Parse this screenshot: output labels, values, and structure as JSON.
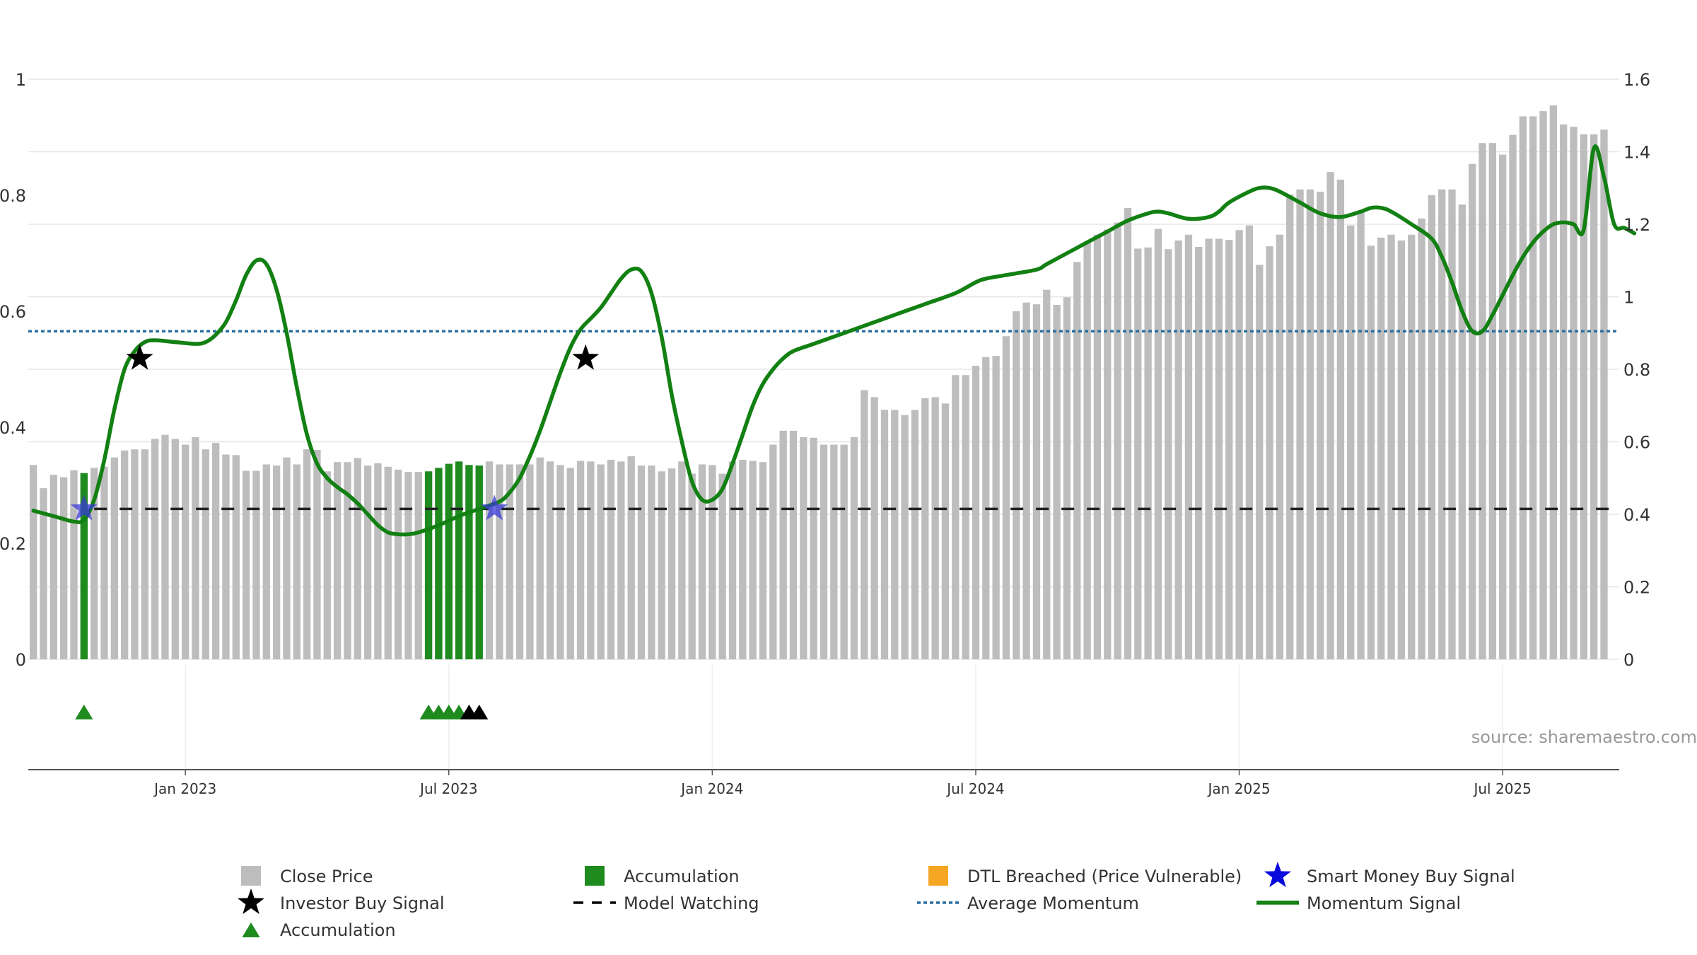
{
  "chart_data": {
    "type": "bar",
    "source": "source: sharemaestro.com",
    "left_axis": {
      "ylim": [
        0,
        1
      ],
      "ticks": [
        0,
        0.2,
        0.4,
        0.6,
        0.8,
        1
      ],
      "tick_labels": [
        "0",
        "0.2",
        "0.4",
        "0.6",
        "0.8",
        "1"
      ]
    },
    "right_axis": {
      "ylim": [
        0,
        1.6
      ],
      "ticks": [
        0,
        0.2,
        0.4,
        0.6,
        0.8,
        1,
        1.2,
        1.4,
        1.6
      ],
      "tick_labels": [
        "0",
        "0.2",
        "0.4",
        "0.6",
        "0.8",
        "1",
        "1.2",
        "1.4",
        "1.6"
      ]
    },
    "x_axis": {
      "weeks_total": 157,
      "ticks": [
        {
          "week": 15,
          "label": "Jan 2023"
        },
        {
          "week": 41,
          "label": "Jul 2023"
        },
        {
          "week": 67,
          "label": "Jan 2024"
        },
        {
          "week": 93,
          "label": "Jul 2024"
        },
        {
          "week": 119,
          "label": "Jan 2025"
        },
        {
          "week": 145,
          "label": "Jul 2025"
        }
      ]
    },
    "series": [
      {
        "name": "Close Price",
        "axis": "left",
        "type": "bar",
        "color": "#bdbdbd",
        "values": [
          0.335,
          0.295,
          0.318,
          0.314,
          0.326,
          0.321,
          0.33,
          0.332,
          0.348,
          0.36,
          0.362,
          0.362,
          0.38,
          0.387,
          0.38,
          0.37,
          0.383,
          0.362,
          0.373,
          0.353,
          0.352,
          0.325,
          0.325,
          0.336,
          0.334,
          0.348,
          0.336,
          0.362,
          0.361,
          0.324,
          0.34,
          0.34,
          0.347,
          0.334,
          0.338,
          0.332,
          0.327,
          0.323,
          0.323,
          0.324,
          0.33,
          0.337,
          0.341,
          0.335,
          0.334,
          0.341,
          0.336,
          0.336,
          0.336,
          0.336,
          0.348,
          0.341,
          0.335,
          0.33,
          0.342,
          0.341,
          0.336,
          0.344,
          0.341,
          0.35,
          0.334,
          0.334,
          0.324,
          0.329,
          0.341,
          0.32,
          0.336,
          0.335,
          0.32,
          0.341,
          0.344,
          0.342,
          0.34,
          0.37,
          0.394,
          0.394,
          0.383,
          0.382,
          0.37,
          0.37,
          0.37,
          0.383,
          0.464,
          0.452,
          0.43,
          0.43,
          0.421,
          0.43,
          0.45,
          0.452,
          0.441,
          0.49,
          0.49,
          0.506,
          0.521,
          0.523,
          0.557,
          0.6,
          0.615,
          0.612,
          0.637,
          0.611,
          0.624,
          0.685,
          0.72,
          0.732,
          0.741,
          0.753,
          0.778,
          0.708,
          0.71,
          0.742,
          0.707,
          0.722,
          0.732,
          0.711,
          0.725,
          0.725,
          0.723,
          0.74,
          0.748,
          0.68,
          0.712,
          0.732,
          0.801,
          0.81,
          0.81,
          0.806,
          0.84,
          0.827,
          0.748,
          0.771,
          0.713,
          0.727,
          0.732,
          0.722,
          0.732,
          0.76,
          0.8,
          0.81,
          0.81,
          0.784,
          0.854,
          0.89,
          0.89,
          0.87,
          0.904,
          0.936,
          0.936,
          0.945,
          0.955,
          0.922,
          0.918,
          0.905,
          0.905,
          0.913
        ]
      },
      {
        "name": "Accumulation",
        "axis": "left",
        "type": "bar",
        "color": "#1f8b1f",
        "weeks": [
          5,
          39,
          40,
          41,
          42,
          43,
          44
        ]
      },
      {
        "name": "Momentum Signal",
        "axis": "right",
        "type": "line",
        "color": "#128012",
        "points": [
          [
            0,
            0.41
          ],
          [
            2,
            0.395
          ],
          [
            4,
            0.38
          ],
          [
            5,
            0.385
          ],
          [
            6,
            0.44
          ],
          [
            7,
            0.55
          ],
          [
            8,
            0.69
          ],
          [
            9,
            0.8
          ],
          [
            10,
            0.85
          ],
          [
            11,
            0.875
          ],
          [
            12,
            0.88
          ],
          [
            14,
            0.875
          ],
          [
            16,
            0.87
          ],
          [
            17,
            0.875
          ],
          [
            18,
            0.895
          ],
          [
            19,
            0.93
          ],
          [
            20,
            0.99
          ],
          [
            21,
            1.06
          ],
          [
            22,
            1.1
          ],
          [
            23,
            1.09
          ],
          [
            24,
            1.02
          ],
          [
            25,
            0.9
          ],
          [
            26,
            0.75
          ],
          [
            27,
            0.62
          ],
          [
            28,
            0.54
          ],
          [
            29,
            0.5
          ],
          [
            30,
            0.475
          ],
          [
            31,
            0.455
          ],
          [
            32,
            0.43
          ],
          [
            33,
            0.4
          ],
          [
            34,
            0.37
          ],
          [
            35,
            0.35
          ],
          [
            36,
            0.345
          ],
          [
            37,
            0.345
          ],
          [
            38,
            0.35
          ],
          [
            40,
            0.37
          ],
          [
            42,
            0.395
          ],
          [
            44,
            0.415
          ],
          [
            46,
            0.435
          ],
          [
            47,
            0.46
          ],
          [
            48,
            0.5
          ],
          [
            49,
            0.56
          ],
          [
            50,
            0.63
          ],
          [
            51,
            0.71
          ],
          [
            52,
            0.79
          ],
          [
            53,
            0.86
          ],
          [
            54,
            0.91
          ],
          [
            55,
            0.94
          ],
          [
            56,
            0.97
          ],
          [
            57,
            1.01
          ],
          [
            58,
            1.05
          ],
          [
            59,
            1.075
          ],
          [
            60,
            1.07
          ],
          [
            61,
            1.01
          ],
          [
            62,
            0.89
          ],
          [
            63,
            0.73
          ],
          [
            64,
            0.6
          ],
          [
            65,
            0.49
          ],
          [
            66,
            0.44
          ],
          [
            67,
            0.44
          ],
          [
            68,
            0.47
          ],
          [
            69,
            0.54
          ],
          [
            70,
            0.62
          ],
          [
            71,
            0.7
          ],
          [
            72,
            0.76
          ],
          [
            73,
            0.8
          ],
          [
            74,
            0.83
          ],
          [
            75,
            0.85
          ],
          [
            77,
            0.87
          ],
          [
            80,
            0.9
          ],
          [
            84,
            0.94
          ],
          [
            88,
            0.98
          ],
          [
            91,
            1.01
          ],
          [
            93,
            1.04
          ],
          [
            94,
            1.05
          ],
          [
            96,
            1.06
          ],
          [
            99,
            1.075
          ],
          [
            100,
            1.09
          ],
          [
            102,
            1.12
          ],
          [
            104,
            1.15
          ],
          [
            106,
            1.18
          ],
          [
            108,
            1.21
          ],
          [
            110,
            1.23
          ],
          [
            111,
            1.235
          ],
          [
            112,
            1.23
          ],
          [
            114,
            1.215
          ],
          [
            116,
            1.22
          ],
          [
            117,
            1.235
          ],
          [
            118,
            1.26
          ],
          [
            120,
            1.29
          ],
          [
            121,
            1.3
          ],
          [
            122,
            1.3
          ],
          [
            123,
            1.29
          ],
          [
            125,
            1.26
          ],
          [
            127,
            1.23
          ],
          [
            129,
            1.22
          ],
          [
            131,
            1.235
          ],
          [
            132,
            1.245
          ],
          [
            133,
            1.245
          ],
          [
            134,
            1.235
          ],
          [
            136,
            1.2
          ],
          [
            138,
            1.16
          ],
          [
            139,
            1.11
          ],
          [
            140,
            1.04
          ],
          [
            141,
            0.96
          ],
          [
            142,
            0.905
          ],
          [
            143,
            0.905
          ],
          [
            144,
            0.95
          ],
          [
            146,
            1.06
          ],
          [
            147,
            1.11
          ],
          [
            148,
            1.15
          ],
          [
            149,
            1.18
          ],
          [
            150,
            1.2
          ],
          [
            151,
            1.205
          ],
          [
            152,
            1.2
          ],
          [
            153,
            1.185
          ],
          [
            154,
            1.41
          ],
          [
            155,
            1.33
          ],
          [
            156,
            1.2
          ],
          [
            157,
            1.19
          ],
          [
            158,
            1.175
          ]
        ]
      },
      {
        "name": "Average Momentum",
        "axis": "right",
        "type": "hline",
        "color": "#2a6fa0",
        "value": 0.905
      },
      {
        "name": "Model Watching",
        "axis": "right",
        "type": "hline",
        "color": "#222222",
        "value": 0.415
      },
      {
        "name": "Investor Buy Signal",
        "axis": "right",
        "type": "marker",
        "shape": "star",
        "color": "#000000",
        "points": [
          [
            10.5,
            0.83
          ],
          [
            54.5,
            0.83
          ]
        ]
      },
      {
        "name": "Smart Money Buy Signal",
        "axis": "right",
        "type": "marker",
        "shape": "star",
        "color": "#3a3ad8",
        "points": [
          [
            5,
            0.415
          ],
          [
            45.5,
            0.415
          ]
        ]
      },
      {
        "name": "Accumulation",
        "axis": "bottom-band",
        "type": "marker",
        "shape": "triangle",
        "color": "#1f8b1f",
        "weeks": [
          5,
          39,
          40,
          41,
          42
        ]
      },
      {
        "name": "DTL Breached (Price Vulnerable)",
        "axis": "bottom-band",
        "type": "marker",
        "shape": "triangle",
        "color": "#000000",
        "weeks": [
          43,
          44
        ]
      }
    ],
    "legend": [
      {
        "label": "Close Price",
        "swatch": "square",
        "color": "#bdbdbd"
      },
      {
        "label": "Accumulation",
        "swatch": "square",
        "color": "#1f8b1f"
      },
      {
        "label": "DTL Breached (Price Vulnerable)",
        "swatch": "square",
        "color": "#f5a623"
      },
      {
        "label": "Smart Money Buy Signal",
        "swatch": "star",
        "color": "#0a0adc"
      },
      {
        "label": "Investor Buy Signal",
        "swatch": "star",
        "color": "#000000"
      },
      {
        "label": "Model Watching",
        "swatch": "dash",
        "color": "#000000"
      },
      {
        "label": "Average Momentum",
        "swatch": "dot",
        "color": "#2a6fa0"
      },
      {
        "label": "Momentum Signal",
        "swatch": "line",
        "color": "#128012"
      },
      {
        "label": "Accumulation",
        "swatch": "triangle",
        "color": "#1f8b1f"
      }
    ]
  }
}
